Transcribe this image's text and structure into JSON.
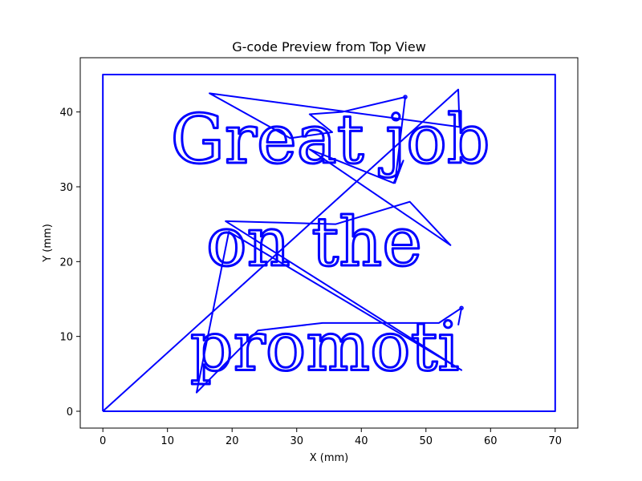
{
  "chart_data": {
    "type": "line",
    "title": "G-code Preview from Top View",
    "xlabel": "X (mm)",
    "ylabel": "Y (mm)",
    "xlim": [
      -3.5,
      73.5
    ],
    "ylim": [
      -2.25,
      47.25
    ],
    "xticks": [
      0,
      10,
      20,
      30,
      40,
      50,
      60,
      70
    ],
    "yticks": [
      0,
      10,
      20,
      30,
      40
    ],
    "grid": false,
    "line_color": "#0000ff",
    "series": [
      {
        "values": [
          {
            "x": 0,
            "y": 0
          },
          {
            "x": 70,
            "y": 0
          },
          {
            "x": 70,
            "y": 45
          },
          {
            "x": 0,
            "y": 45
          },
          {
            "x": 0,
            "y": 0
          }
        ]
      },
      {
        "values": [
          {
            "x": 0,
            "y": 0
          },
          {
            "x": 55,
            "y": 43
          },
          {
            "x": 55.2,
            "y": 38
          },
          {
            "x": 16.5,
            "y": 42.5
          },
          {
            "x": 29,
            "y": 36.5
          },
          {
            "x": 35.5,
            "y": 37.3
          },
          {
            "x": 32,
            "y": 39.7
          },
          {
            "x": 37,
            "y": 40
          },
          {
            "x": 46.8,
            "y": 42
          },
          {
            "x": 45.2,
            "y": 30.5
          },
          {
            "x": 46.5,
            "y": 33.5
          },
          {
            "x": 45,
            "y": 30.5
          },
          {
            "x": 32,
            "y": 35
          },
          {
            "x": 53.8,
            "y": 22.2
          },
          {
            "x": 47.5,
            "y": 28
          },
          {
            "x": 36,
            "y": 25
          },
          {
            "x": 19,
            "y": 25.4
          },
          {
            "x": 55.5,
            "y": 5.5
          },
          {
            "x": 19.5,
            "y": 24
          },
          {
            "x": 14.5,
            "y": 2.5
          },
          {
            "x": 24,
            "y": 10.8
          },
          {
            "x": 34,
            "y": 11.8
          },
          {
            "x": 52,
            "y": 11.8
          },
          {
            "x": 55.5,
            "y": 13.8
          },
          {
            "x": 55,
            "y": 11.5
          }
        ]
      }
    ],
    "text_paths": [
      {
        "text": "Great job",
        "x": 10.5,
        "y": 33.2
      },
      {
        "text": "on the",
        "x": 16,
        "y": 19.5
      },
      {
        "text": "promoti",
        "x": 13.5,
        "y": 5.5
      }
    ]
  }
}
